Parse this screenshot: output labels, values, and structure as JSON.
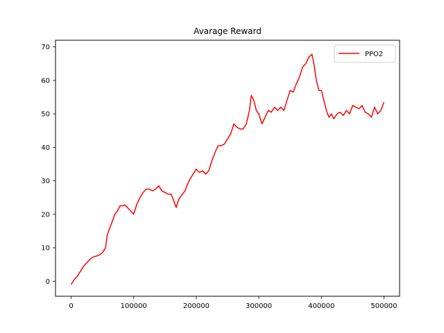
{
  "chart_data": {
    "type": "line",
    "title": "Avarage Reward",
    "xlabel": "",
    "ylabel": "",
    "xlim": [
      -25000,
      525000
    ],
    "ylim": [
      -4.5,
      72
    ],
    "x_ticks": [
      0,
      100000,
      200000,
      300000,
      400000,
      500000
    ],
    "x_tick_labels": [
      "0",
      "100000",
      "200000",
      "300000",
      "400000",
      "500000"
    ],
    "y_ticks": [
      0,
      10,
      20,
      30,
      40,
      50,
      60,
      70
    ],
    "y_tick_labels": [
      "0",
      "10",
      "20",
      "30",
      "40",
      "50",
      "60",
      "70"
    ],
    "grid": false,
    "legend_position": "top-right",
    "series": [
      {
        "name": "PPO2",
        "color": "#ff0000",
        "points": [
          [
            0,
            -1
          ],
          [
            5000,
            0.5
          ],
          [
            10000,
            1.5
          ],
          [
            15000,
            3
          ],
          [
            20000,
            4.5
          ],
          [
            25000,
            5.5
          ],
          [
            30000,
            6.5
          ],
          [
            35000,
            7.2
          ],
          [
            40000,
            7.5
          ],
          [
            45000,
            7.8
          ],
          [
            50000,
            8.5
          ],
          [
            55000,
            10
          ],
          [
            58000,
            14
          ],
          [
            62000,
            16
          ],
          [
            66000,
            18
          ],
          [
            70000,
            20
          ],
          [
            74000,
            21
          ],
          [
            78000,
            22.5
          ],
          [
            82000,
            22.5
          ],
          [
            86000,
            22.8
          ],
          [
            90000,
            22
          ],
          [
            95000,
            21
          ],
          [
            100000,
            20
          ],
          [
            105000,
            23
          ],
          [
            110000,
            25
          ],
          [
            115000,
            26.5
          ],
          [
            120000,
            27.5
          ],
          [
            125000,
            27.5
          ],
          [
            130000,
            27
          ],
          [
            135000,
            27.5
          ],
          [
            140000,
            28.5
          ],
          [
            145000,
            27
          ],
          [
            150000,
            26.5
          ],
          [
            155000,
            26
          ],
          [
            160000,
            26
          ],
          [
            165000,
            23.5
          ],
          [
            168000,
            22
          ],
          [
            172000,
            24.5
          ],
          [
            178000,
            26
          ],
          [
            182000,
            27
          ],
          [
            186000,
            29
          ],
          [
            190000,
            30.5
          ],
          [
            195000,
            32
          ],
          [
            200000,
            33.5
          ],
          [
            205000,
            32.5
          ],
          [
            210000,
            33
          ],
          [
            215000,
            32
          ],
          [
            220000,
            33
          ],
          [
            225000,
            36
          ],
          [
            230000,
            38.5
          ],
          [
            235000,
            40.5
          ],
          [
            240000,
            40.5
          ],
          [
            245000,
            41
          ],
          [
            250000,
            42.5
          ],
          [
            255000,
            44
          ],
          [
            260000,
            47
          ],
          [
            265000,
            46
          ],
          [
            270000,
            45.5
          ],
          [
            275000,
            45.5
          ],
          [
            280000,
            47
          ],
          [
            285000,
            51
          ],
          [
            288000,
            55.5
          ],
          [
            292000,
            54
          ],
          [
            296000,
            51
          ],
          [
            300000,
            50
          ],
          [
            305000,
            47
          ],
          [
            310000,
            49
          ],
          [
            315000,
            51
          ],
          [
            320000,
            50.5
          ],
          [
            325000,
            52
          ],
          [
            330000,
            51
          ],
          [
            335000,
            52
          ],
          [
            340000,
            51
          ],
          [
            345000,
            54
          ],
          [
            350000,
            57
          ],
          [
            355000,
            56.5
          ],
          [
            360000,
            59
          ],
          [
            365000,
            61
          ],
          [
            370000,
            64
          ],
          [
            375000,
            65
          ],
          [
            380000,
            67
          ],
          [
            385000,
            67.8
          ],
          [
            388000,
            65
          ],
          [
            392000,
            60
          ],
          [
            396000,
            57
          ],
          [
            400000,
            57
          ],
          [
            404000,
            54
          ],
          [
            408000,
            51
          ],
          [
            412000,
            49
          ],
          [
            416000,
            50
          ],
          [
            420000,
            48.5
          ],
          [
            425000,
            50
          ],
          [
            430000,
            50.5
          ],
          [
            435000,
            49.5
          ],
          [
            440000,
            51
          ],
          [
            445000,
            50
          ],
          [
            450000,
            52.5
          ],
          [
            455000,
            52
          ],
          [
            460000,
            51.5
          ],
          [
            465000,
            52.5
          ],
          [
            470000,
            50.5
          ],
          [
            475000,
            50
          ],
          [
            480000,
            49
          ],
          [
            485000,
            52
          ],
          [
            490000,
            50
          ],
          [
            495000,
            51
          ],
          [
            500000,
            53.5
          ]
        ]
      }
    ]
  }
}
